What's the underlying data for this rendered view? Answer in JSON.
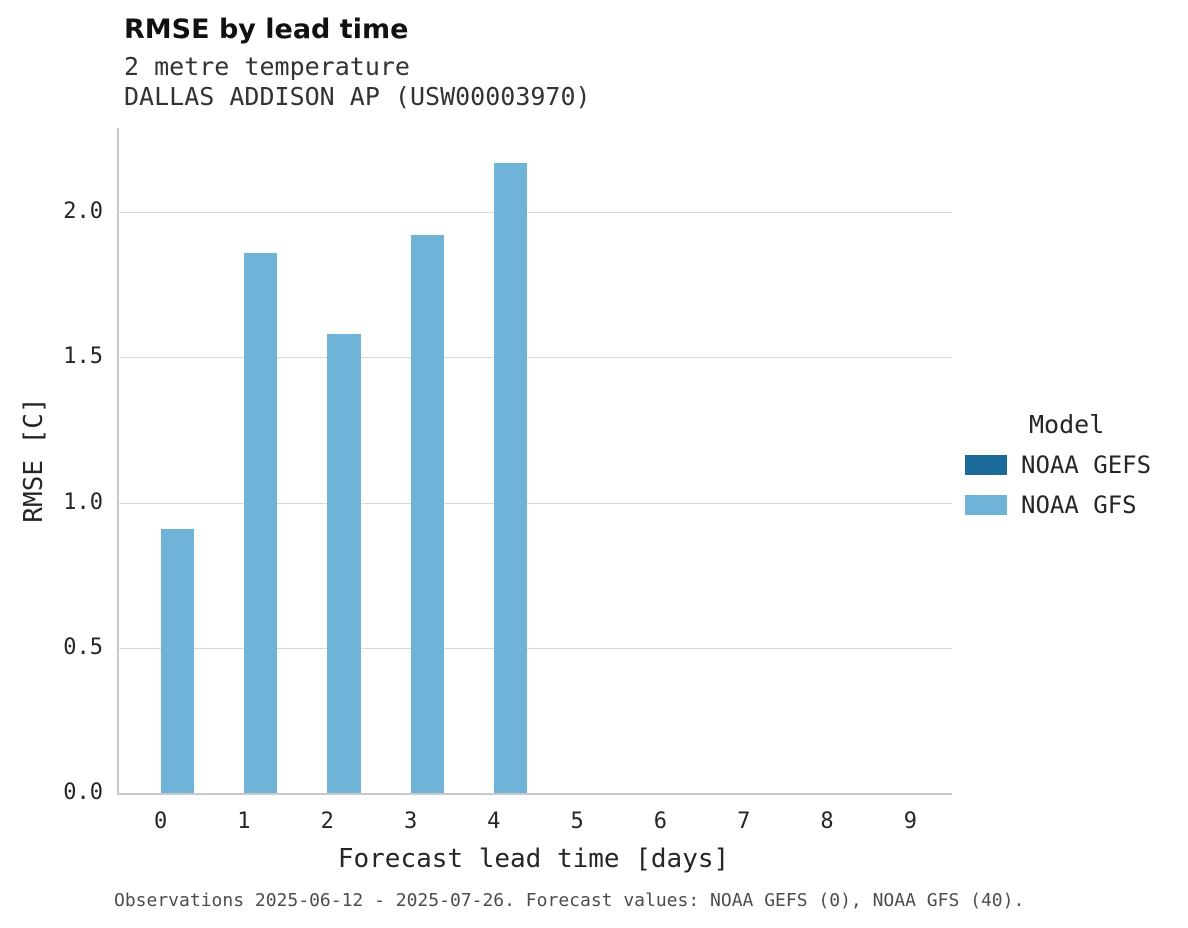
{
  "header": {
    "title": "RMSE by lead time",
    "subtitle": "2 metre temperature",
    "station": "DALLAS ADDISON AP (USW00003970)"
  },
  "chart_data": {
    "type": "bar",
    "title": "RMSE by lead time",
    "subtitle": "2 metre temperature",
    "station": "DALLAS ADDISON AP (USW00003970)",
    "categories": [
      "0",
      "1",
      "2",
      "3",
      "4",
      "5",
      "6",
      "7",
      "8",
      "9"
    ],
    "series": [
      {
        "name": "NOAA GEFS",
        "color": "#1a6b99",
        "values": [
          null,
          null,
          null,
          null,
          null,
          null,
          null,
          null,
          null,
          null
        ]
      },
      {
        "name": "NOAA GFS",
        "color": "#6fb3d8",
        "values": [
          0.91,
          1.86,
          1.58,
          1.92,
          2.17,
          null,
          null,
          null,
          null,
          null
        ]
      }
    ],
    "xlabel": "Forecast lead time [days]",
    "ylabel": "RMSE [C]",
    "ylim": [
      0,
      2.29
    ],
    "yticks": [
      0.0,
      0.5,
      1.0,
      1.5,
      2.0
    ],
    "grid": "horizontal",
    "legend": {
      "title": "Model",
      "position": "right"
    },
    "caption": "Observations 2025-06-12 - 2025-07-26. Forecast values: NOAA GEFS (0), NOAA GFS (40)."
  }
}
